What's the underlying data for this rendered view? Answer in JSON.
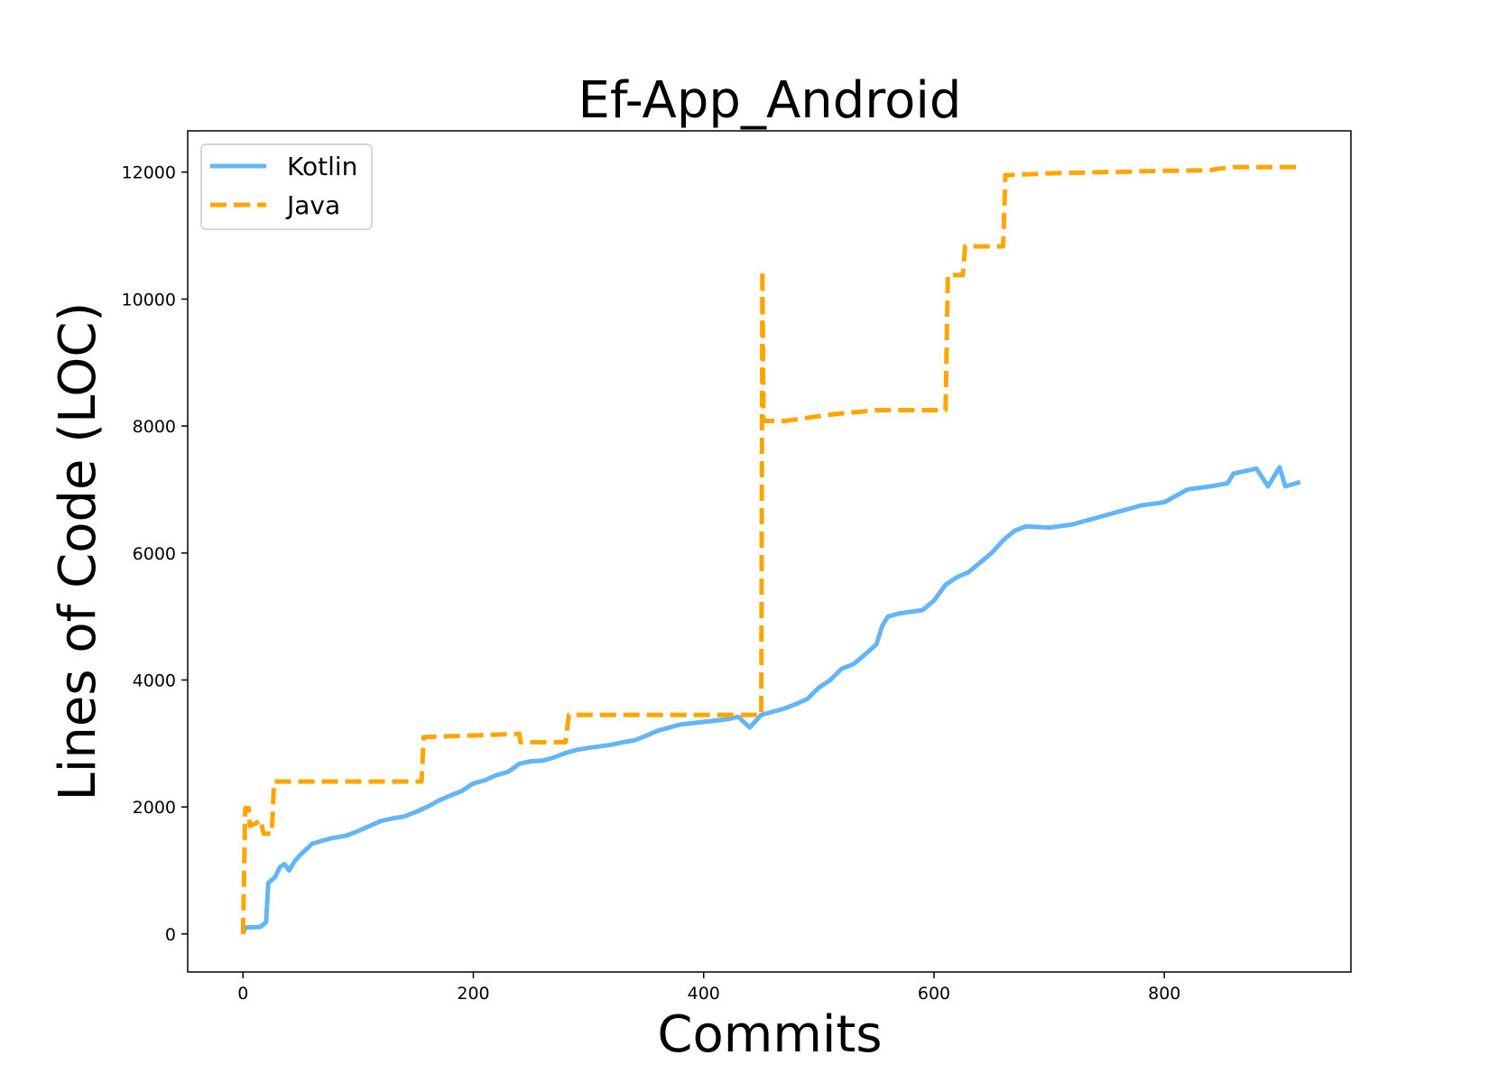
{
  "chart_data": {
    "type": "line",
    "title": "Ef-App_Android",
    "xlabel": "Commits",
    "ylabel": "Lines of Code (LOC)",
    "xlim": [
      -48,
      962
    ],
    "ylim": [
      -600,
      12650
    ],
    "xticks": [
      0,
      200,
      400,
      600,
      800
    ],
    "yticks": [
      0,
      2000,
      4000,
      6000,
      8000,
      10000,
      12000
    ],
    "legend_position": "top-left",
    "grid": false,
    "series": [
      {
        "name": "Kotlin",
        "color": "#64b5f6",
        "style": "solid",
        "points": [
          [
            0,
            0
          ],
          [
            2,
            100
          ],
          [
            15,
            110
          ],
          [
            20,
            180
          ],
          [
            22,
            800
          ],
          [
            28,
            900
          ],
          [
            32,
            1050
          ],
          [
            36,
            1100
          ],
          [
            40,
            1000
          ],
          [
            45,
            1150
          ],
          [
            50,
            1250
          ],
          [
            60,
            1420
          ],
          [
            75,
            1500
          ],
          [
            90,
            1550
          ],
          [
            100,
            1620
          ],
          [
            110,
            1700
          ],
          [
            120,
            1780
          ],
          [
            130,
            1820
          ],
          [
            140,
            1850
          ],
          [
            150,
            1920
          ],
          [
            160,
            2000
          ],
          [
            170,
            2100
          ],
          [
            180,
            2180
          ],
          [
            190,
            2250
          ],
          [
            200,
            2370
          ],
          [
            210,
            2420
          ],
          [
            220,
            2500
          ],
          [
            230,
            2550
          ],
          [
            240,
            2680
          ],
          [
            250,
            2720
          ],
          [
            260,
            2730
          ],
          [
            270,
            2780
          ],
          [
            280,
            2850
          ],
          [
            290,
            2900
          ],
          [
            300,
            2930
          ],
          [
            320,
            2980
          ],
          [
            330,
            3020
          ],
          [
            340,
            3050
          ],
          [
            350,
            3120
          ],
          [
            360,
            3200
          ],
          [
            380,
            3300
          ],
          [
            400,
            3340
          ],
          [
            420,
            3380
          ],
          [
            430,
            3420
          ],
          [
            440,
            3250
          ],
          [
            450,
            3450
          ],
          [
            460,
            3500
          ],
          [
            470,
            3550
          ],
          [
            480,
            3620
          ],
          [
            490,
            3700
          ],
          [
            500,
            3880
          ],
          [
            510,
            4000
          ],
          [
            520,
            4180
          ],
          [
            530,
            4250
          ],
          [
            540,
            4400
          ],
          [
            550,
            4560
          ],
          [
            555,
            4850
          ],
          [
            560,
            5000
          ],
          [
            570,
            5050
          ],
          [
            590,
            5100
          ],
          [
            600,
            5250
          ],
          [
            610,
            5500
          ],
          [
            620,
            5620
          ],
          [
            630,
            5700
          ],
          [
            640,
            5850
          ],
          [
            650,
            6000
          ],
          [
            660,
            6200
          ],
          [
            670,
            6350
          ],
          [
            680,
            6420
          ],
          [
            700,
            6400
          ],
          [
            720,
            6450
          ],
          [
            740,
            6550
          ],
          [
            760,
            6650
          ],
          [
            780,
            6750
          ],
          [
            800,
            6800
          ],
          [
            820,
            7000
          ],
          [
            840,
            7050
          ],
          [
            855,
            7100
          ],
          [
            860,
            7250
          ],
          [
            880,
            7330
          ],
          [
            890,
            7050
          ],
          [
            900,
            7350
          ],
          [
            905,
            7050
          ],
          [
            915,
            7100
          ],
          [
            918,
            7120
          ]
        ]
      },
      {
        "name": "Java",
        "color": "#ffa500",
        "style": "dashed",
        "points": [
          [
            0,
            0
          ],
          [
            2,
            1980
          ],
          [
            5,
            1980
          ],
          [
            6,
            1700
          ],
          [
            12,
            1750
          ],
          [
            15,
            1800
          ],
          [
            18,
            1580
          ],
          [
            25,
            1580
          ],
          [
            27,
            2400
          ],
          [
            155,
            2400
          ],
          [
            157,
            3100
          ],
          [
            240,
            3150
          ],
          [
            241,
            3020
          ],
          [
            280,
            3020
          ],
          [
            283,
            3450
          ],
          [
            450,
            3450
          ],
          [
            451,
            10450
          ],
          [
            452,
            8080
          ],
          [
            470,
            8080
          ],
          [
            510,
            8180
          ],
          [
            550,
            8250
          ],
          [
            610,
            8250
          ],
          [
            612,
            10380
          ],
          [
            625,
            10380
          ],
          [
            627,
            10830
          ],
          [
            660,
            10830
          ],
          [
            662,
            11950
          ],
          [
            700,
            11980
          ],
          [
            800,
            12020
          ],
          [
            840,
            12030
          ],
          [
            845,
            12050
          ],
          [
            860,
            12080
          ],
          [
            918,
            12080
          ]
        ]
      }
    ]
  }
}
